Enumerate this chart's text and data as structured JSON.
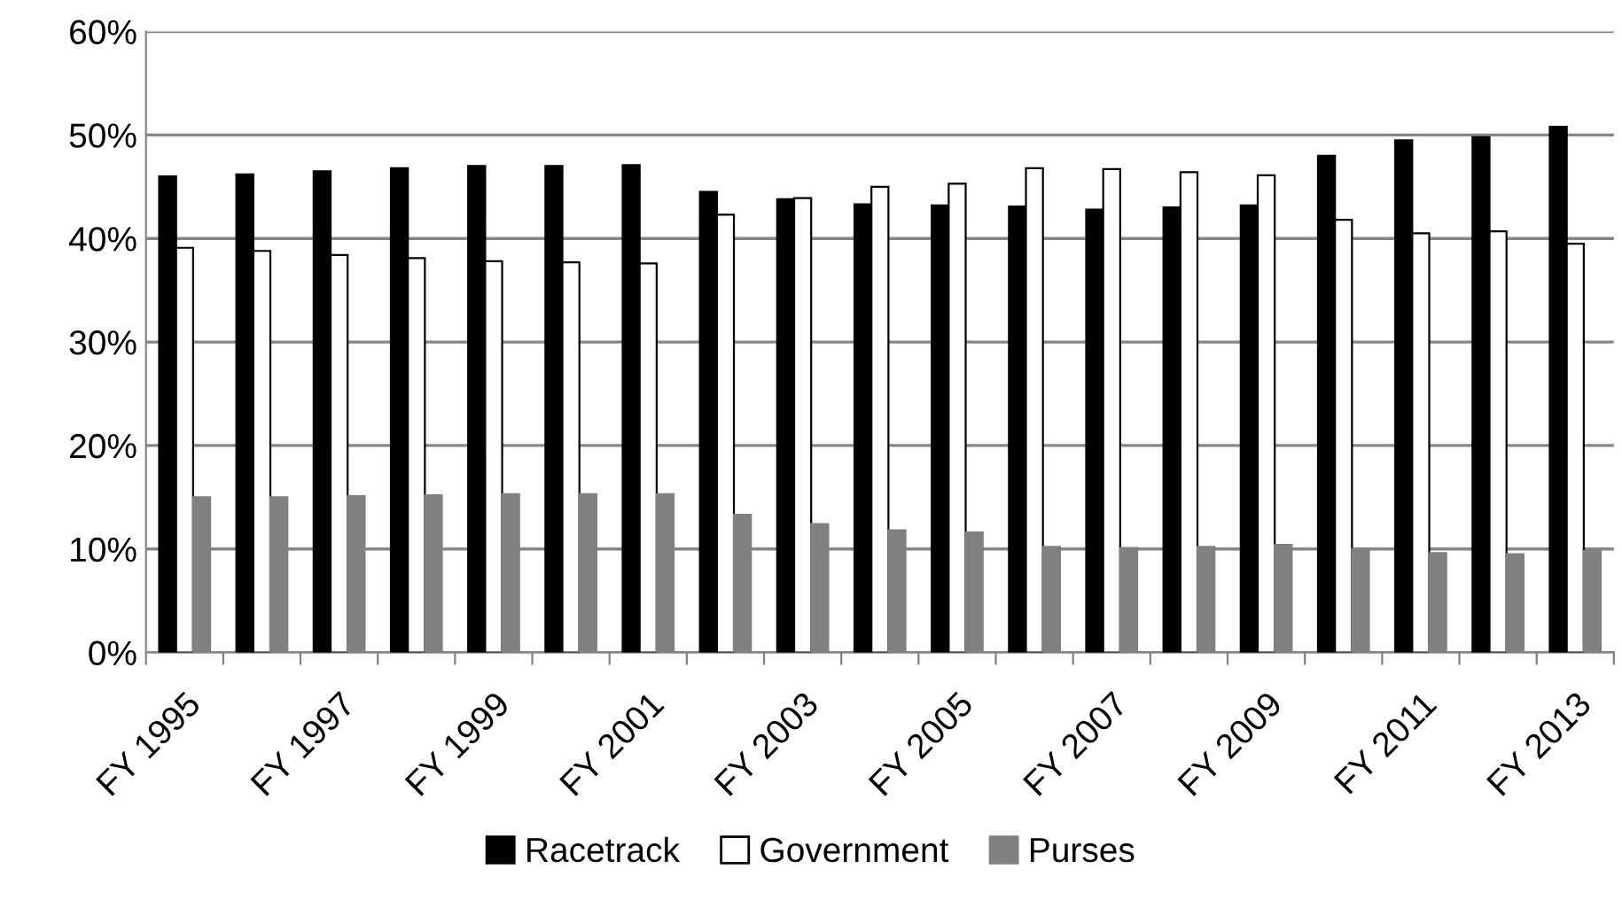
{
  "chart_data": {
    "type": "bar",
    "categories": [
      "FY 1995",
      null,
      "FY 1997",
      null,
      "FY 1999",
      null,
      "FY 2001",
      null,
      "FY 2003",
      null,
      "FY 2005",
      null,
      "FY 2007",
      null,
      "FY 2009",
      null,
      "FY 2011",
      null,
      "FY 2013"
    ],
    "series": [
      {
        "name": "Racetrack",
        "color": "#000000",
        "values": [
          46.0,
          46.2,
          46.5,
          46.8,
          47.0,
          47.0,
          47.1,
          44.5,
          43.8,
          43.3,
          43.2,
          43.1,
          42.8,
          43.0,
          43.2,
          48.0,
          49.5,
          49.8,
          50.8
        ]
      },
      {
        "name": "Government",
        "color": "#ffffff",
        "values": [
          39.1,
          38.8,
          38.4,
          38.1,
          37.8,
          37.7,
          37.6,
          42.3,
          43.9,
          45.0,
          45.3,
          46.8,
          46.7,
          46.4,
          46.1,
          41.8,
          40.5,
          40.7,
          39.5
        ]
      },
      {
        "name": "Purses",
        "color": "#808080",
        "values": [
          15.0,
          15.0,
          15.1,
          15.2,
          15.3,
          15.3,
          15.3,
          13.3,
          12.4,
          11.8,
          11.6,
          10.2,
          10.1,
          10.2,
          10.4,
          10.0,
          9.6,
          9.5,
          9.8
        ]
      }
    ],
    "ylim": [
      0,
      60
    ],
    "yticks": [
      {
        "value": 0,
        "label": "0%"
      },
      {
        "value": 10,
        "label": "10%"
      },
      {
        "value": 20,
        "label": "20%"
      },
      {
        "value": 30,
        "label": "30%"
      },
      {
        "value": 40,
        "label": "40%"
      },
      {
        "value": 50,
        "label": "50%"
      },
      {
        "value": 60,
        "label": "60%"
      }
    ],
    "grid": "y",
    "legend": "bottom"
  }
}
